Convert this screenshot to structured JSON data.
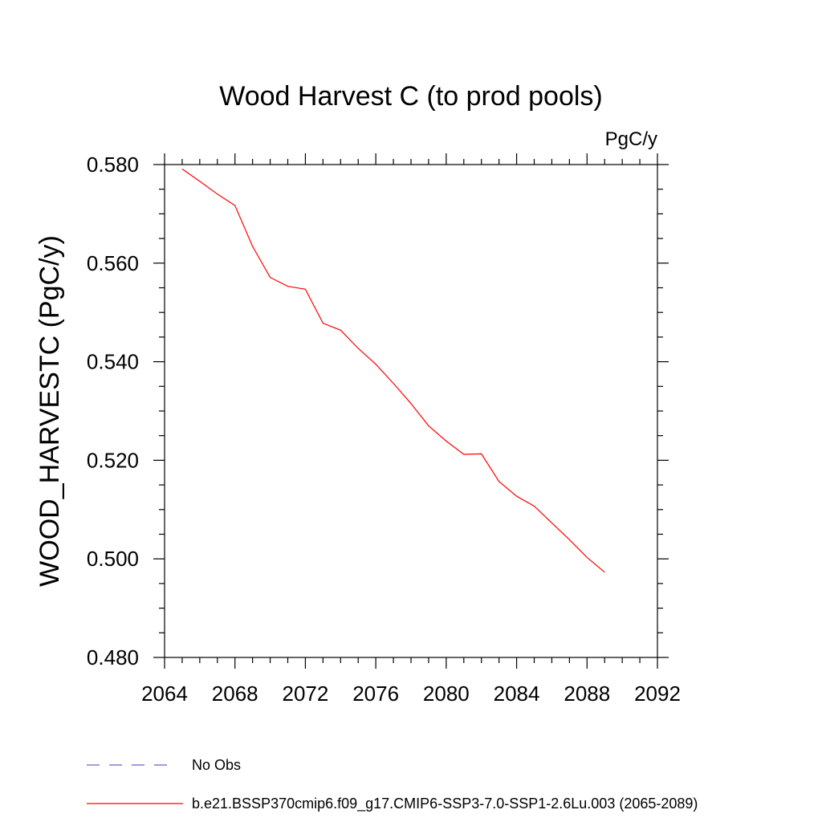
{
  "chart_data": {
    "type": "line",
    "title": "Wood Harvest C (to prod pools)",
    "units": "PgC/y",
    "ylabel": "WOOD_HARVESTC  (PgC/y)",
    "xlabel": "",
    "xlim": [
      2064,
      2092
    ],
    "ylim": [
      0.48,
      0.58
    ],
    "x_ticks": [
      2064,
      2068,
      2072,
      2076,
      2080,
      2084,
      2088,
      2092
    ],
    "x_tick_labels": [
      "2064",
      "2068",
      "2072",
      "2076",
      "2080",
      "2084",
      "2088",
      "2092"
    ],
    "y_ticks": [
      0.48,
      0.5,
      0.52,
      0.54,
      0.56,
      0.58
    ],
    "y_tick_labels": [
      "0.480",
      "0.500",
      "0.520",
      "0.540",
      "0.560",
      "0.580"
    ],
    "grid": false,
    "legend_placement": "bottom",
    "series": [
      {
        "name": "b.e21.BSSP370cmip6.f09_g17.CMIP6-SSP3-7.0-SSP1-2.6Lu.003 (2065-2089)",
        "color": "#ff0000",
        "x": [
          2065,
          2066,
          2067,
          2068,
          2069,
          2070,
          2071,
          2072,
          2073,
          2074,
          2075,
          2076,
          2077,
          2078,
          2079,
          2080,
          2081,
          2082,
          2083,
          2084,
          2085,
          2086,
          2087,
          2088,
          2089
        ],
        "values": [
          0.5791,
          0.5766,
          0.574,
          0.5717,
          0.5634,
          0.5571,
          0.5553,
          0.5547,
          0.5478,
          0.5464,
          0.5427,
          0.5395,
          0.5356,
          0.5315,
          0.527,
          0.5239,
          0.5212,
          0.5213,
          0.5157,
          0.5127,
          0.5107,
          0.5073,
          0.5039,
          0.5003,
          0.4973
        ]
      }
    ]
  },
  "legend": {
    "entries": [
      {
        "label": "No Obs",
        "color": "#6a5acd",
        "style": "dashed"
      },
      {
        "label": "b.e21.BSSP370cmip6.f09_g17.CMIP6-SSP3-7.0-SSP1-2.6Lu.003 (2065-2089)",
        "color": "#ff0000",
        "style": "solid"
      }
    ]
  }
}
